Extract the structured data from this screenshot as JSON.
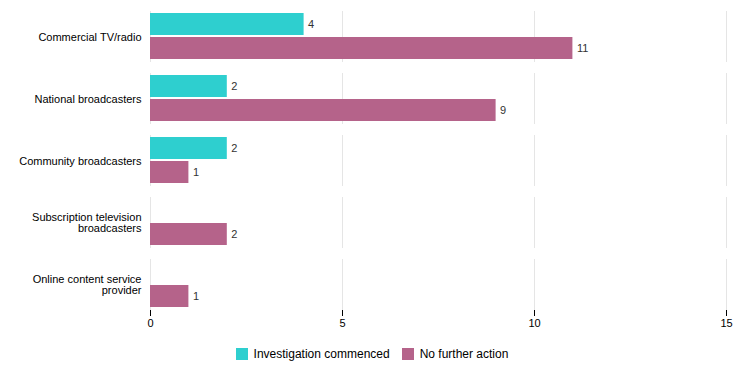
{
  "chart_data": {
    "type": "bar",
    "orientation": "horizontal",
    "categories": [
      "Commercial TV/radio",
      "National broadcasters",
      "Community broadcasters",
      "Subscription television\nbroadcasters",
      "Online content service\nprovider"
    ],
    "series": [
      {
        "name": "Investigation commenced",
        "color": "#2ecfcf",
        "values": [
          4,
          2,
          2,
          0,
          0
        ]
      },
      {
        "name": "No further action",
        "color": "#b5638a",
        "values": [
          11,
          9,
          1,
          2,
          1
        ]
      }
    ],
    "xlim": [
      0,
      15
    ],
    "xticks": [
      0,
      5,
      10,
      15
    ],
    "grid": true,
    "legend": "bottom",
    "data_labels": true
  }
}
